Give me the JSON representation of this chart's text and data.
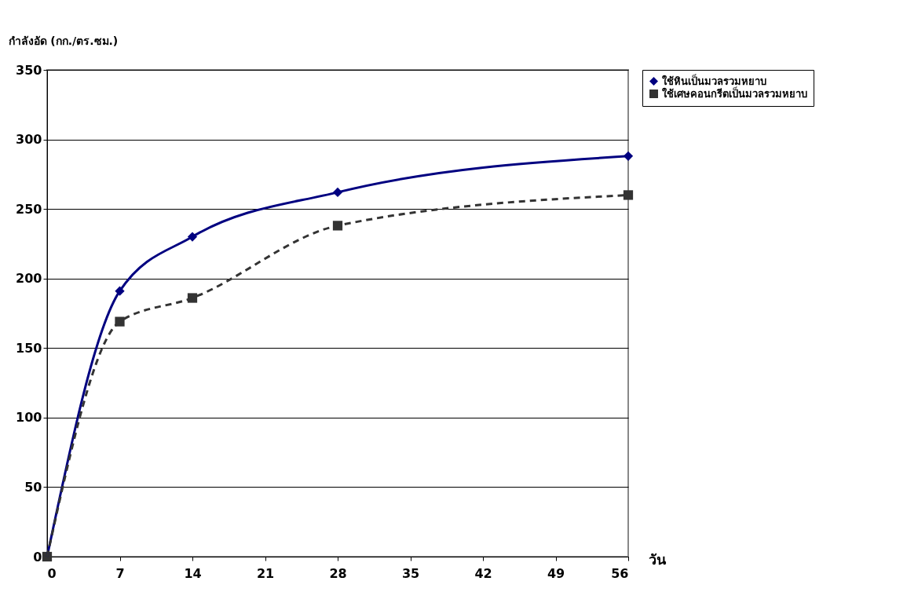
{
  "chart_data": {
    "type": "line",
    "ylabel": "กำลังอัด (กก./ตร.ซม.)",
    "xlabel": "วัน",
    "x": [
      0,
      7,
      14,
      28,
      56
    ],
    "series": [
      {
        "name": "ใช้หินเป็นมวลรวมหยาบ",
        "color": "#000080",
        "values": [
          0,
          191,
          230,
          262,
          288
        ],
        "marker": "diamond",
        "line_style": "solid"
      },
      {
        "name": "ใช้เศษคอนกรีตเป็นมวลรวมหยาบ",
        "color": "#333333",
        "values": [
          0,
          169,
          186,
          238,
          260
        ],
        "marker": "square",
        "line_style": "dashed"
      }
    ],
    "xlim": [
      0,
      56
    ],
    "xticks": [
      0,
      7,
      14,
      21,
      28,
      35,
      42,
      49,
      56
    ],
    "ylim": [
      0,
      350
    ],
    "yticks": [
      0,
      50,
      100,
      150,
      200,
      250,
      300,
      350
    ],
    "grid": "y",
    "legend": "right"
  }
}
